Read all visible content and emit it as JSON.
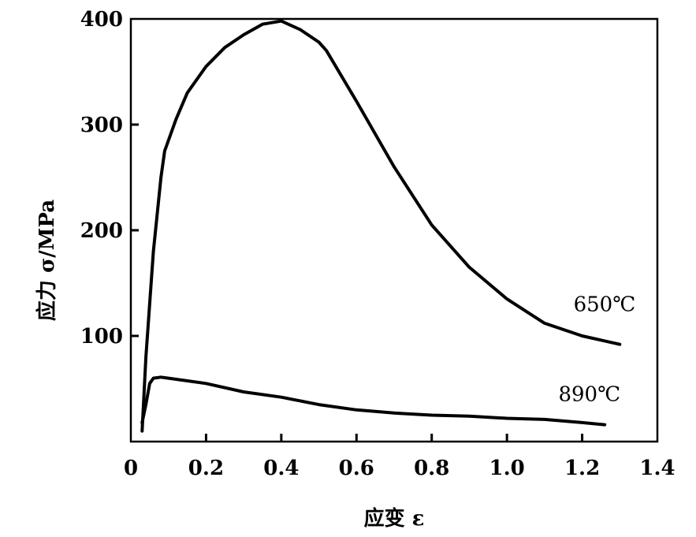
{
  "chart_data": {
    "type": "line",
    "xlabel": "应变 ε",
    "ylabel": "应力 σ/MPa",
    "xlim": [
      0,
      1.4
    ],
    "ylim": [
      0,
      400
    ],
    "x_ticks": [
      0,
      0.2,
      0.4,
      0.6,
      0.8,
      1.0,
      1.2,
      1.4
    ],
    "x_tick_labels": [
      "0",
      "0.2",
      "0.4",
      "0.6",
      "0.8",
      "1.0",
      "1.2",
      "1.4"
    ],
    "y_ticks": [
      100,
      200,
      300,
      400
    ],
    "y_tick_labels": [
      "100",
      "200",
      "300",
      "400"
    ],
    "grid": false,
    "series": [
      {
        "name": "650℃",
        "x": [
          0.03,
          0.04,
          0.06,
          0.08,
          0.09,
          0.12,
          0.15,
          0.2,
          0.25,
          0.3,
          0.35,
          0.4,
          0.45,
          0.5,
          0.52,
          0.6,
          0.7,
          0.8,
          0.9,
          1.0,
          1.1,
          1.2,
          1.3
        ],
        "y": [
          10,
          80,
          180,
          250,
          275,
          305,
          330,
          355,
          373,
          385,
          395,
          398,
          390,
          378,
          370,
          322,
          260,
          205,
          165,
          135,
          112,
          100,
          92
        ]
      },
      {
        "name": "890℃",
        "x": [
          0.03,
          0.04,
          0.05,
          0.06,
          0.08,
          0.1,
          0.2,
          0.3,
          0.4,
          0.5,
          0.6,
          0.7,
          0.8,
          0.9,
          1.0,
          1.1,
          1.2,
          1.26
        ],
        "y": [
          18,
          35,
          55,
          60,
          61,
          60,
          55,
          47,
          42,
          35,
          30,
          27,
          25,
          24,
          22,
          21,
          18,
          16
        ]
      }
    ]
  }
}
